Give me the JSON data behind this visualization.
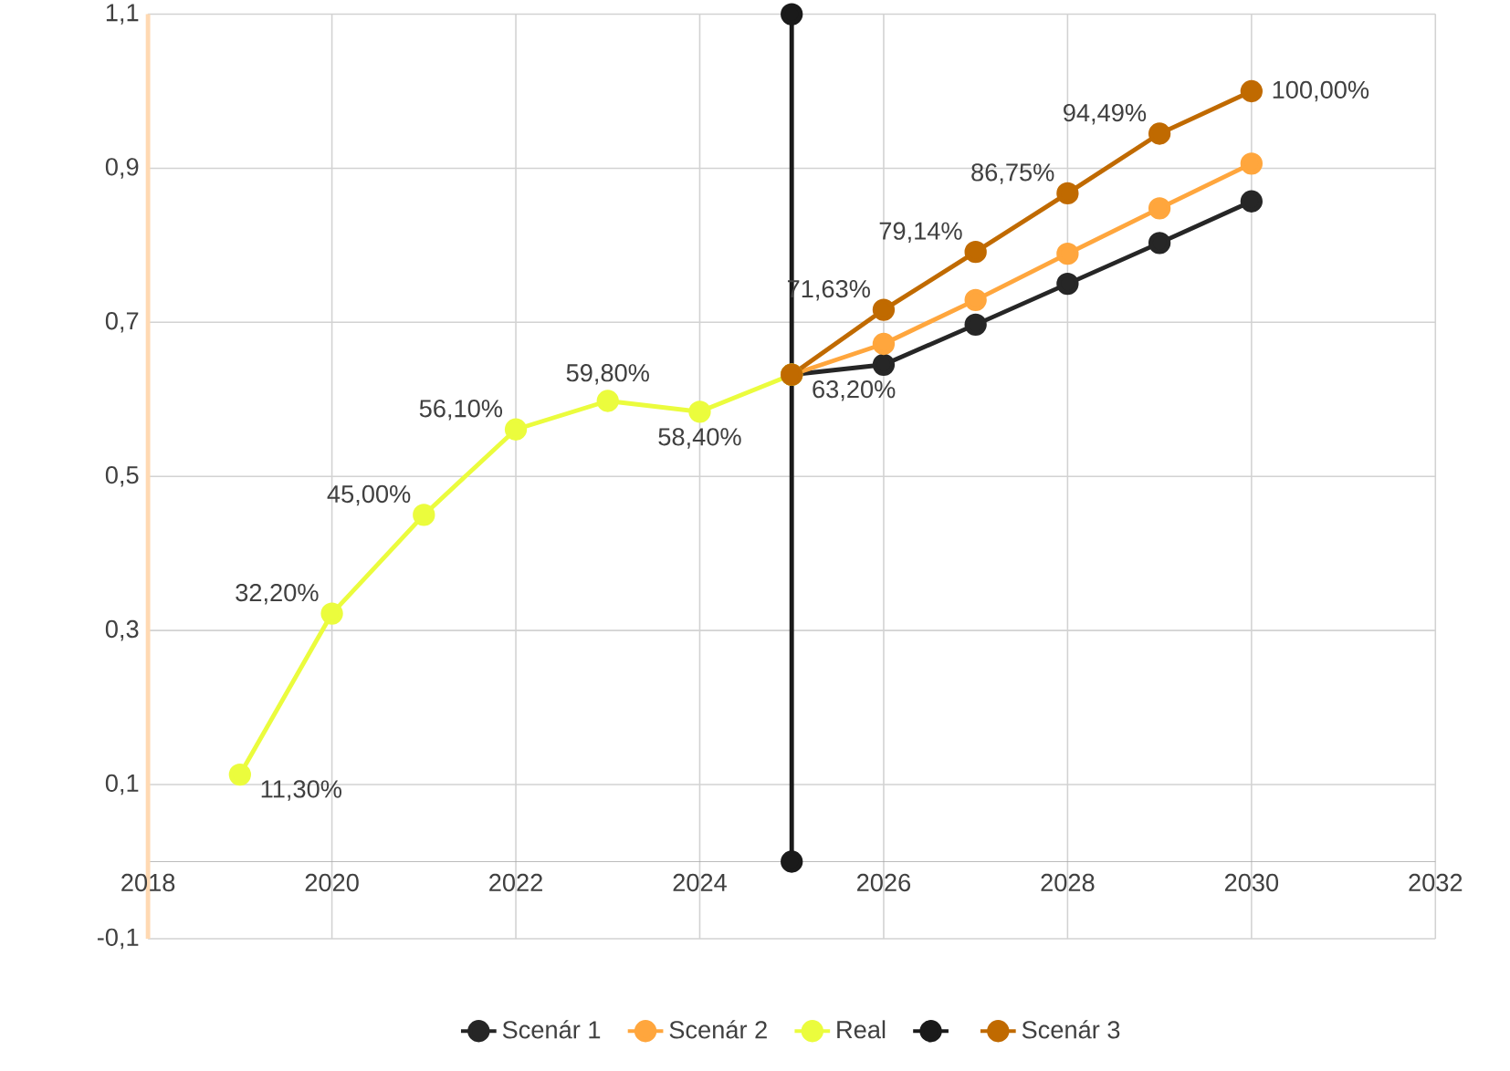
{
  "chart_data": {
    "type": "line",
    "x": [
      2019,
      2020,
      2021,
      2022,
      2023,
      2024,
      2025
    ],
    "series": [
      {
        "name": "Scenár 1",
        "color": "#262626",
        "x": [
          2025,
          2026,
          2027,
          2028,
          2029,
          2030
        ],
        "values": [
          0.632,
          0.645,
          0.697,
          0.75,
          0.803,
          0.857
        ]
      },
      {
        "name": "Scenár 2",
        "color": "#ffa63d",
        "x": [
          2025,
          2026,
          2027,
          2028,
          2029,
          2030
        ],
        "values": [
          0.632,
          0.672,
          0.729,
          0.789,
          0.848,
          0.906
        ]
      },
      {
        "name": "Real",
        "color": "#ebfc3d",
        "values": [
          0.113,
          0.322,
          0.45,
          0.561,
          0.598,
          0.584,
          0.632
        ],
        "value_labels": [
          "11,30%",
          "32,20%",
          "45,00%",
          "56,10%",
          "59,80%",
          "58,40%",
          null
        ]
      },
      {
        "color": "#1a1a1a",
        "x": [
          2025,
          2025
        ],
        "values": [
          0,
          1.1
        ]
      },
      {
        "name": "Scenár 3",
        "color": "#c06a00",
        "x": [
          2025,
          2026,
          2027,
          2028,
          2029,
          2030
        ],
        "values": [
          0.632,
          0.7163,
          0.7914,
          0.8675,
          0.9449,
          1.0
        ],
        "value_labels": [
          "63,20%",
          "71,63%",
          "79,14%",
          "86,75%",
          "94,49%",
          "100,00%"
        ]
      }
    ],
    "xlim": [
      2018,
      2032
    ],
    "xticks": [
      2018,
      2020,
      2022,
      2024,
      2026,
      2028,
      2030,
      2032
    ],
    "ylim": [
      -0.1,
      1.1
    ],
    "yticks": [
      {
        "value": -0.1,
        "label": "-0,1"
      },
      {
        "value": 0.1,
        "label": "0,1"
      },
      {
        "value": 0.3,
        "label": "0,3"
      },
      {
        "value": 0.5,
        "label": "0,5"
      },
      {
        "value": 0.7,
        "label": "0,7"
      },
      {
        "value": 0.9,
        "label": "0,9"
      },
      {
        "value": 1.1,
        "label": "1,1"
      }
    ],
    "grid": true,
    "legend": "bottom",
    "marker": "circle",
    "line_style": "solid"
  }
}
